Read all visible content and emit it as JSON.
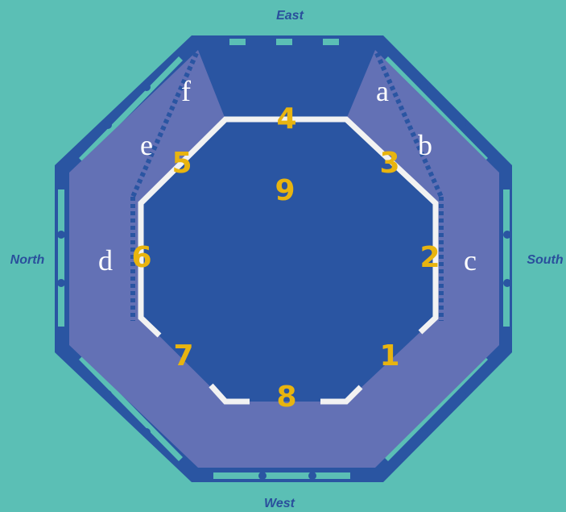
{
  "directions": {
    "top": "East",
    "left": "North",
    "right": "South",
    "bottom": "West"
  },
  "letters": [
    "a",
    "b",
    "c",
    "d",
    "e",
    "f"
  ],
  "numbers": [
    "1",
    "2",
    "3",
    "4",
    "5",
    "6",
    "7",
    "8",
    "9"
  ],
  "colors": {
    "background": "#5bbfb5",
    "frame": "#2a55a2",
    "outer_band": "#6371b5",
    "inner_area": "#2a55a2",
    "inner_line": "#f2f2f2",
    "number_color": "#e8b40f",
    "letter_color": "#ffffff",
    "direction_color": "#2a4f9c"
  }
}
